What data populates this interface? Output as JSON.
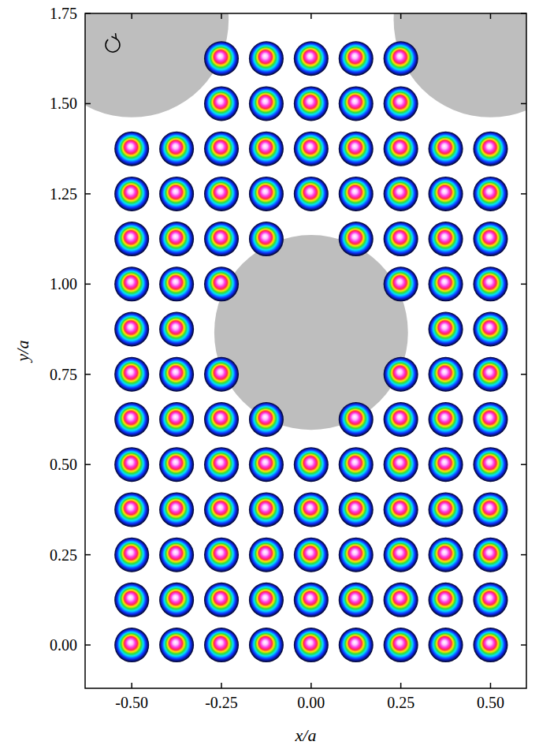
{
  "chart_data": {
    "type": "scatter",
    "x_label": "x/a",
    "y_label": "y/a",
    "xlim": [
      -0.63,
      0.6
    ],
    "ylim": [
      -0.12,
      1.75
    ],
    "xticks": [
      {
        "value": -0.5,
        "label": "-0.50"
      },
      {
        "value": -0.25,
        "label": "-0.25"
      },
      {
        "value": 0,
        "label": "0.00"
      },
      {
        "value": 0.25,
        "label": "0.25"
      },
      {
        "value": 0.5,
        "label": "0.50"
      }
    ],
    "yticks": [
      {
        "value": 0,
        "label": "0.00"
      },
      {
        "value": 0.25,
        "label": "0.25"
      },
      {
        "value": 0.5,
        "label": "0.50"
      },
      {
        "value": 0.75,
        "label": "0.75"
      },
      {
        "value": 1,
        "label": "1.00"
      },
      {
        "value": 1.25,
        "label": "1.25"
      },
      {
        "value": 1.5,
        "label": "1.50"
      },
      {
        "value": 1.75,
        "label": "1.75"
      }
    ],
    "marker": "circle",
    "x": [
      -0.5,
      -0.375,
      -0.25,
      -0.125,
      0,
      0.125,
      0.25,
      0.375,
      0.5,
      -0.5,
      -0.375,
      -0.25,
      -0.125,
      0,
      0.125,
      0.25,
      0.375,
      0.5,
      -0.5,
      -0.375,
      -0.25,
      -0.125,
      0,
      0.125,
      0.25,
      0.375,
      0.5,
      -0.5,
      -0.375,
      -0.25,
      -0.125,
      0,
      0.125,
      0.25,
      0.375,
      0.5,
      -0.5,
      -0.375,
      -0.25,
      -0.125,
      0,
      0.125,
      0.25,
      0.375,
      0.5,
      -0.5,
      -0.375,
      -0.25,
      -0.125,
      0.125,
      0.25,
      0.375,
      0.5,
      -0.5,
      -0.375,
      -0.25,
      0.25,
      0.375,
      0.5,
      -0.5,
      -0.375,
      0.375,
      0.5,
      -0.5,
      -0.375,
      -0.25,
      0.25,
      0.375,
      0.5,
      -0.5,
      -0.375,
      -0.25,
      -0.125,
      0.125,
      0.25,
      0.375,
      0.5,
      -0.5,
      -0.375,
      -0.25,
      -0.125,
      0,
      0.125,
      0.25,
      0.375,
      0.5,
      -0.5,
      -0.375,
      -0.25,
      -0.125,
      0,
      0.125,
      0.25,
      0.375,
      0.5,
      -0.25,
      -0.125,
      0,
      0.125,
      0.25,
      -0.25,
      -0.125,
      0,
      0.125,
      0.25
    ],
    "values": [
      0,
      0,
      0,
      0,
      0,
      0,
      0,
      0,
      0,
      0.125,
      0.125,
      0.125,
      0.125,
      0.125,
      0.125,
      0.125,
      0.125,
      0.125,
      0.25,
      0.25,
      0.25,
      0.25,
      0.25,
      0.25,
      0.25,
      0.25,
      0.25,
      0.375,
      0.375,
      0.375,
      0.375,
      0.375,
      0.375,
      0.375,
      0.375,
      0.375,
      0.5,
      0.5,
      0.5,
      0.5,
      0.5,
      0.5,
      0.5,
      0.5,
      0.5,
      0.625,
      0.625,
      0.625,
      0.625,
      0.625,
      0.625,
      0.625,
      0.625,
      0.75,
      0.75,
      0.75,
      0.75,
      0.75,
      0.75,
      0.875,
      0.875,
      0.875,
      0.875,
      1,
      1,
      1,
      1,
      1,
      1,
      1.125,
      1.125,
      1.125,
      1.125,
      1.125,
      1.125,
      1.125,
      1.125,
      1.25,
      1.25,
      1.25,
      1.25,
      1.25,
      1.25,
      1.25,
      1.25,
      1.25,
      1.375,
      1.375,
      1.375,
      1.375,
      1.375,
      1.375,
      1.375,
      1.375,
      1.375,
      1.5,
      1.5,
      1.5,
      1.5,
      1.5,
      1.625,
      1.625,
      1.625,
      1.625,
      1.625
    ],
    "obstacles": {
      "x": [
        0,
        -0.5,
        0.5
      ],
      "y": [
        0.866,
        1.732,
        1.732
      ],
      "radius": [
        0.27,
        0.27,
        0.27
      ],
      "color": "#bebebe"
    }
  }
}
